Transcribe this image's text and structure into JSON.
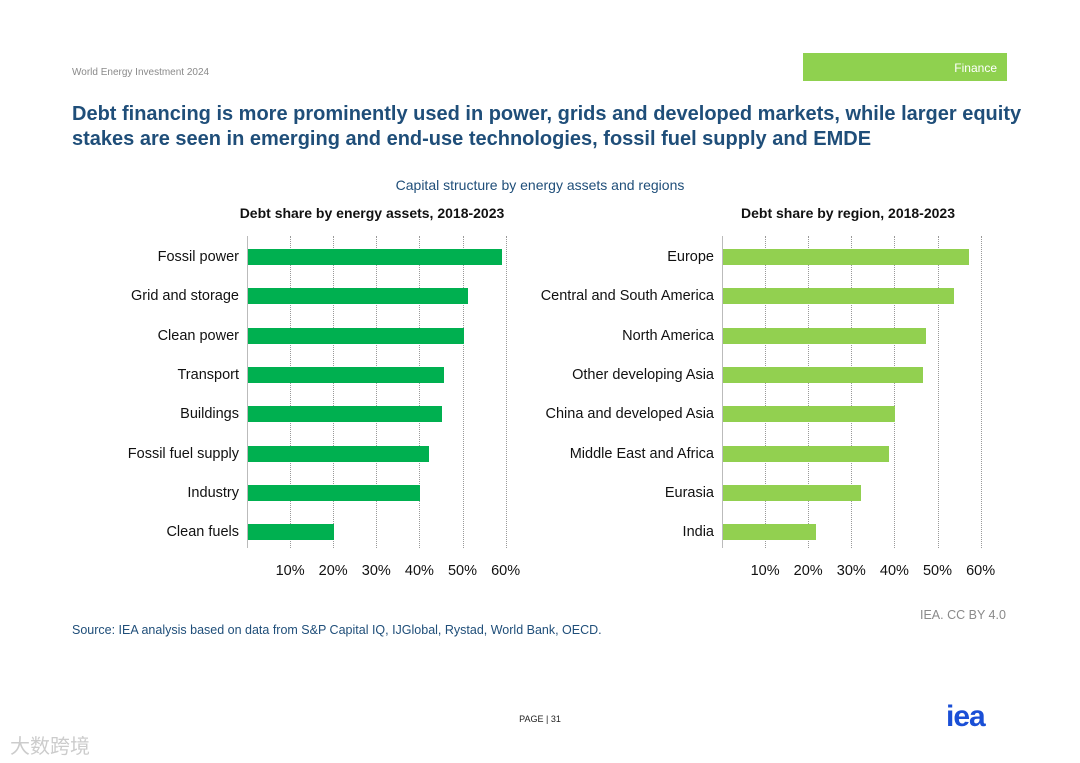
{
  "header": {
    "document": "World Energy Investment 2024",
    "section_badge": "Finance"
  },
  "title": "Debt financing is more prominently used in power, grids and developed markets, while larger equity stakes are seen in emerging and end-use technologies, fossil fuel supply and EMDE",
  "subtitle": "Capital structure by energy assets and regions",
  "colors": {
    "left_bar": "#00b050",
    "right_bar": "#92d050",
    "title": "#1f4e79"
  },
  "chart_data": [
    {
      "type": "bar",
      "orientation": "horizontal",
      "title": "Debt share by energy assets, 2018-2023",
      "categories": [
        "Fossil power",
        "Grid and storage",
        "Clean power",
        "Transport",
        "Buildings",
        "Fossil fuel supply",
        "Industry",
        "Clean fuels"
      ],
      "values": [
        59,
        51,
        50,
        45.5,
        45,
        42,
        40,
        20
      ],
      "xlim": [
        0,
        60
      ],
      "xticks": [
        "10%",
        "20%",
        "30%",
        "40%",
        "50%",
        "60%"
      ],
      "grid": true,
      "unit": "%"
    },
    {
      "type": "bar",
      "orientation": "horizontal",
      "title": "Debt share by region, 2018-2023",
      "categories": [
        "Europe",
        "Central and South America",
        "North America",
        "Other developing Asia",
        "China and developed Asia",
        "Middle East and Africa",
        "Eurasia",
        "India"
      ],
      "values": [
        57,
        53.5,
        47,
        46.5,
        40,
        38.5,
        32,
        21.5
      ],
      "xlim": [
        0,
        60
      ],
      "xticks": [
        "10%",
        "20%",
        "30%",
        "40%",
        "50%",
        "60%"
      ],
      "grid": true,
      "unit": "%"
    }
  ],
  "footer": {
    "source": "Source: IEA analysis based on data from S&P Capital IQ, IJGlobal, Rystad, World Bank, OECD.",
    "credit": "IEA. CC BY 4.0",
    "page": "PAGE | 31",
    "logo": "iea",
    "watermark": "大数跨境"
  }
}
